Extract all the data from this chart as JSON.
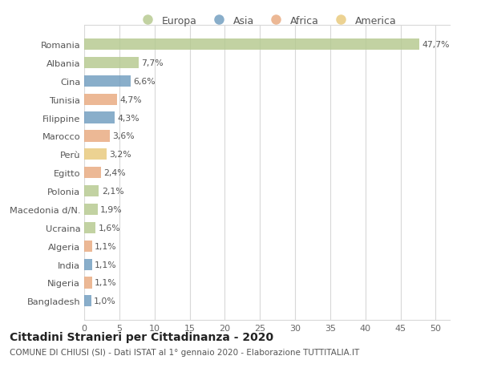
{
  "categories": [
    "Romania",
    "Albania",
    "Cina",
    "Tunisia",
    "Filippine",
    "Marocco",
    "Perù",
    "Egitto",
    "Polonia",
    "Macedonia d/N.",
    "Ucraina",
    "Algeria",
    "India",
    "Nigeria",
    "Bangladesh"
  ],
  "values": [
    47.7,
    7.7,
    6.6,
    4.7,
    4.3,
    3.6,
    3.2,
    2.4,
    2.1,
    1.9,
    1.6,
    1.1,
    1.1,
    1.1,
    1.0
  ],
  "labels": [
    "47,7%",
    "7,7%",
    "6,6%",
    "4,7%",
    "4,3%",
    "3,6%",
    "3,2%",
    "2,4%",
    "2,1%",
    "1,9%",
    "1,6%",
    "1,1%",
    "1,1%",
    "1,1%",
    "1,0%"
  ],
  "colors": [
    "#b5c98e",
    "#b5c98e",
    "#6f9cbf",
    "#e8a97e",
    "#6f9cbf",
    "#e8a97e",
    "#e8c97a",
    "#e8a97e",
    "#b5c98e",
    "#b5c98e",
    "#b5c98e",
    "#e8a97e",
    "#6f9cbf",
    "#e8a97e",
    "#6f9cbf"
  ],
  "legend_labels": [
    "Europa",
    "Asia",
    "Africa",
    "America"
  ],
  "legend_colors": [
    "#b5c98e",
    "#6f9cbf",
    "#e8a97e",
    "#e8c97a"
  ],
  "title": "Cittadini Stranieri per Cittadinanza - 2020",
  "subtitle": "COMUNE DI CHIUSI (SI) - Dati ISTAT al 1° gennaio 2020 - Elaborazione TUTTITALIA.IT",
  "xlim": [
    0,
    52
  ],
  "xticks": [
    0,
    5,
    10,
    15,
    20,
    25,
    30,
    35,
    40,
    45,
    50
  ],
  "bg_color": "#ffffff",
  "grid_color": "#d8d8d8",
  "bar_height": 0.62,
  "bar_alpha": 0.82,
  "label_fontsize": 7.8,
  "ytick_fontsize": 8.2,
  "xtick_fontsize": 8.0,
  "legend_fontsize": 9.0,
  "title_fontsize": 10.0,
  "subtitle_fontsize": 7.5
}
